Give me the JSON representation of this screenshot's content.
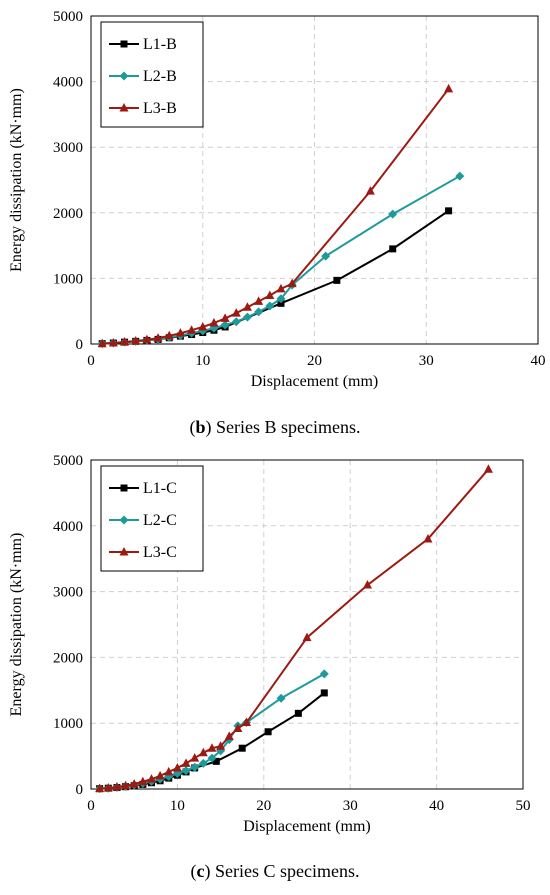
{
  "chart_data": [
    {
      "type": "line",
      "xlabel": "Displacement (mm)",
      "ylabel": "Energy dissipation (kN·mm)",
      "xlim": [
        0,
        40
      ],
      "ylim": [
        0,
        5000
      ],
      "xticks": [
        "0",
        "10",
        "20",
        "30",
        "40"
      ],
      "yticks": [
        "0",
        "1000",
        "2000",
        "3000",
        "4000",
        "5000"
      ],
      "grid": true,
      "legend": "top-left",
      "series": [
        {
          "name": "L1-B",
          "color": "#000000",
          "marker": "square",
          "x": [
            1,
            2,
            3,
            4,
            5,
            6,
            7,
            8,
            9,
            10,
            11,
            12,
            17,
            22,
            27,
            32
          ],
          "y": [
            5,
            15,
            28,
            40,
            55,
            70,
            95,
            120,
            145,
            175,
            210,
            260,
            620,
            970,
            1450,
            2030
          ]
        },
        {
          "name": "L2-B",
          "color": "#1e9a9a",
          "marker": "diamond",
          "x": [
            1,
            2,
            3,
            4,
            5,
            6,
            7,
            8,
            9,
            10,
            11,
            12,
            13,
            14,
            15,
            16,
            17,
            18,
            21,
            27,
            33
          ],
          "y": [
            5,
            15,
            28,
            40,
            55,
            72,
            100,
            130,
            165,
            200,
            240,
            290,
            340,
            410,
            490,
            580,
            690,
            900,
            1340,
            1980,
            2560
          ]
        },
        {
          "name": "L3-B",
          "color": "#9c1a12",
          "marker": "triangle",
          "x": [
            1,
            2,
            3,
            4,
            5,
            6,
            7,
            8,
            9,
            10,
            11,
            12,
            13,
            14,
            15,
            16,
            17,
            18,
            25,
            32
          ],
          "y": [
            5,
            15,
            30,
            45,
            65,
            90,
            125,
            165,
            210,
            260,
            320,
            390,
            470,
            560,
            650,
            740,
            840,
            920,
            2330,
            3890
          ]
        }
      ],
      "caption": {
        "label": "b",
        "text": " Series B specimens."
      }
    },
    {
      "type": "line",
      "xlabel": "Displacement (mm)",
      "ylabel": "Energy dissipation (kN·mm)",
      "xlim": [
        0,
        50
      ],
      "ylim": [
        0,
        5000
      ],
      "xticks": [
        "0",
        "10",
        "20",
        "30",
        "40",
        "50"
      ],
      "yticks": [
        "0",
        "1000",
        "2000",
        "3000",
        "4000",
        "5000"
      ],
      "grid": true,
      "legend": "top-left",
      "series": [
        {
          "name": "L1-C",
          "color": "#000000",
          "marker": "square",
          "x": [
            1,
            2,
            3,
            4,
            5,
            6,
            7,
            8,
            9,
            10,
            11,
            12,
            14.5,
            17.5,
            20.5,
            24,
            27
          ],
          "y": [
            5,
            12,
            22,
            35,
            50,
            70,
            95,
            125,
            165,
            210,
            260,
            320,
            420,
            620,
            870,
            1150,
            1460
          ]
        },
        {
          "name": "L2-C",
          "color": "#1e9a9a",
          "marker": "diamond",
          "x": [
            1,
            2,
            3,
            4,
            5,
            6,
            7,
            8,
            9,
            10,
            11,
            12,
            13,
            14,
            15,
            16,
            17,
            18,
            22,
            27
          ],
          "y": [
            5,
            12,
            25,
            40,
            60,
            85,
            115,
            150,
            190,
            235,
            280,
            330,
            390,
            470,
            580,
            750,
            960,
            1010,
            1380,
            1750
          ]
        },
        {
          "name": "L3-C",
          "color": "#9c1a12",
          "marker": "triangle",
          "x": [
            1,
            2,
            3,
            4,
            5,
            6,
            7,
            8,
            9,
            10,
            11,
            12,
            13,
            14,
            15,
            16,
            17,
            18,
            25,
            32,
            39,
            46
          ],
          "y": [
            5,
            15,
            30,
            50,
            75,
            110,
            150,
            200,
            260,
            320,
            390,
            470,
            550,
            620,
            650,
            800,
            920,
            1010,
            2300,
            3100,
            3800,
            4860
          ]
        }
      ],
      "caption": {
        "label": "c",
        "text": " Series C specimens."
      }
    }
  ]
}
